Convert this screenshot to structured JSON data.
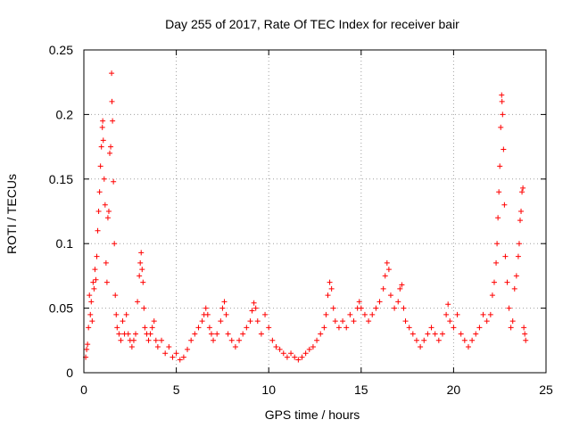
{
  "chart_data": {
    "type": "scatter",
    "title": "Day 255 of 2017, Rate Of TEC Index for receiver bair",
    "xlabel": "GPS time / hours",
    "ylabel": "ROTI / TECUs",
    "xlim": [
      0,
      25
    ],
    "ylim": [
      0,
      0.25
    ],
    "xticks": [
      0,
      5,
      10,
      15,
      20,
      25
    ],
    "xtick_labels": [
      "0",
      "5",
      "10",
      "15",
      "20",
      "25"
    ],
    "yticks": [
      0,
      0.05,
      0.1,
      0.15,
      0.2,
      0.25
    ],
    "ytick_labels": [
      "0",
      "0.05",
      "0.1",
      "0.15",
      "0.2",
      "0.25"
    ],
    "grid": true,
    "marker": "+",
    "color": "#ff0000",
    "series": [
      {
        "name": "ROTI",
        "points": [
          [
            0.1,
            0.012
          ],
          [
            0.15,
            0.018
          ],
          [
            0.2,
            0.022
          ],
          [
            0.25,
            0.035
          ],
          [
            0.3,
            0.06
          ],
          [
            0.35,
            0.045
          ],
          [
            0.4,
            0.055
          ],
          [
            0.45,
            0.04
          ],
          [
            0.5,
            0.07
          ],
          [
            0.55,
            0.065
          ],
          [
            0.6,
            0.08
          ],
          [
            0.65,
            0.072
          ],
          [
            0.7,
            0.09
          ],
          [
            0.75,
            0.11
          ],
          [
            0.8,
            0.125
          ],
          [
            0.85,
            0.14
          ],
          [
            0.9,
            0.16
          ],
          [
            0.95,
            0.175
          ],
          [
            1.0,
            0.19
          ],
          [
            1.02,
            0.195
          ],
          [
            1.05,
            0.18
          ],
          [
            1.1,
            0.15
          ],
          [
            1.15,
            0.13
          ],
          [
            1.2,
            0.085
          ],
          [
            1.25,
            0.07
          ],
          [
            1.3,
            0.12
          ],
          [
            1.35,
            0.125
          ],
          [
            1.4,
            0.17
          ],
          [
            1.45,
            0.175
          ],
          [
            1.5,
            0.232
          ],
          [
            1.52,
            0.21
          ],
          [
            1.55,
            0.195
          ],
          [
            1.6,
            0.148
          ],
          [
            1.65,
            0.1
          ],
          [
            1.7,
            0.06
          ],
          [
            1.75,
            0.045
          ],
          [
            1.8,
            0.035
          ],
          [
            1.9,
            0.03
          ],
          [
            2.0,
            0.025
          ],
          [
            2.1,
            0.04
          ],
          [
            2.2,
            0.03
          ],
          [
            2.3,
            0.045
          ],
          [
            2.4,
            0.03
          ],
          [
            2.5,
            0.025
          ],
          [
            2.6,
            0.02
          ],
          [
            2.7,
            0.025
          ],
          [
            2.8,
            0.03
          ],
          [
            2.9,
            0.055
          ],
          [
            3.0,
            0.075
          ],
          [
            3.05,
            0.085
          ],
          [
            3.1,
            0.093
          ],
          [
            3.15,
            0.08
          ],
          [
            3.2,
            0.07
          ],
          [
            3.25,
            0.05
          ],
          [
            3.3,
            0.035
          ],
          [
            3.4,
            0.03
          ],
          [
            3.5,
            0.025
          ],
          [
            3.6,
            0.03
          ],
          [
            3.7,
            0.035
          ],
          [
            3.8,
            0.04
          ],
          [
            3.9,
            0.025
          ],
          [
            4.0,
            0.02
          ],
          [
            4.2,
            0.025
          ],
          [
            4.4,
            0.015
          ],
          [
            4.6,
            0.02
          ],
          [
            4.8,
            0.012
          ],
          [
            5.0,
            0.015
          ],
          [
            5.2,
            0.01
          ],
          [
            5.4,
            0.012
          ],
          [
            5.6,
            0.018
          ],
          [
            5.8,
            0.025
          ],
          [
            6.0,
            0.03
          ],
          [
            6.2,
            0.035
          ],
          [
            6.4,
            0.04
          ],
          [
            6.5,
            0.045
          ],
          [
            6.6,
            0.05
          ],
          [
            6.7,
            0.045
          ],
          [
            6.8,
            0.035
          ],
          [
            6.9,
            0.03
          ],
          [
            7.0,
            0.025
          ],
          [
            7.2,
            0.03
          ],
          [
            7.4,
            0.04
          ],
          [
            7.5,
            0.05
          ],
          [
            7.6,
            0.055
          ],
          [
            7.7,
            0.045
          ],
          [
            7.8,
            0.03
          ],
          [
            8.0,
            0.025
          ],
          [
            8.2,
            0.02
          ],
          [
            8.4,
            0.025
          ],
          [
            8.6,
            0.03
          ],
          [
            8.8,
            0.035
          ],
          [
            9.0,
            0.04
          ],
          [
            9.1,
            0.048
          ],
          [
            9.2,
            0.054
          ],
          [
            9.3,
            0.05
          ],
          [
            9.4,
            0.04
          ],
          [
            9.6,
            0.03
          ],
          [
            9.8,
            0.045
          ],
          [
            10.0,
            0.035
          ],
          [
            10.2,
            0.025
          ],
          [
            10.4,
            0.02
          ],
          [
            10.6,
            0.018
          ],
          [
            10.8,
            0.015
          ],
          [
            11.0,
            0.012
          ],
          [
            11.2,
            0.015
          ],
          [
            11.4,
            0.012
          ],
          [
            11.6,
            0.01
          ],
          [
            11.8,
            0.012
          ],
          [
            12.0,
            0.015
          ],
          [
            12.2,
            0.018
          ],
          [
            12.4,
            0.02
          ],
          [
            12.6,
            0.025
          ],
          [
            12.8,
            0.03
          ],
          [
            13.0,
            0.035
          ],
          [
            13.1,
            0.045
          ],
          [
            13.2,
            0.06
          ],
          [
            13.3,
            0.07
          ],
          [
            13.4,
            0.065
          ],
          [
            13.5,
            0.05
          ],
          [
            13.6,
            0.04
          ],
          [
            13.8,
            0.035
          ],
          [
            14.0,
            0.04
          ],
          [
            14.2,
            0.035
          ],
          [
            14.4,
            0.045
          ],
          [
            14.6,
            0.04
          ],
          [
            14.8,
            0.05
          ],
          [
            14.9,
            0.055
          ],
          [
            15.0,
            0.05
          ],
          [
            15.2,
            0.045
          ],
          [
            15.4,
            0.04
          ],
          [
            15.6,
            0.045
          ],
          [
            15.8,
            0.05
          ],
          [
            16.0,
            0.055
          ],
          [
            16.2,
            0.065
          ],
          [
            16.3,
            0.075
          ],
          [
            16.4,
            0.085
          ],
          [
            16.5,
            0.08
          ],
          [
            16.6,
            0.06
          ],
          [
            16.8,
            0.05
          ],
          [
            17.0,
            0.055
          ],
          [
            17.1,
            0.065
          ],
          [
            17.2,
            0.068
          ],
          [
            17.3,
            0.05
          ],
          [
            17.4,
            0.04
          ],
          [
            17.6,
            0.035
          ],
          [
            17.8,
            0.03
          ],
          [
            18.0,
            0.025
          ],
          [
            18.2,
            0.02
          ],
          [
            18.4,
            0.025
          ],
          [
            18.6,
            0.03
          ],
          [
            18.8,
            0.035
          ],
          [
            19.0,
            0.03
          ],
          [
            19.2,
            0.025
          ],
          [
            19.4,
            0.03
          ],
          [
            19.6,
            0.045
          ],
          [
            19.7,
            0.053
          ],
          [
            19.8,
            0.04
          ],
          [
            20.0,
            0.035
          ],
          [
            20.2,
            0.045
          ],
          [
            20.4,
            0.03
          ],
          [
            20.6,
            0.025
          ],
          [
            20.8,
            0.02
          ],
          [
            21.0,
            0.025
          ],
          [
            21.2,
            0.03
          ],
          [
            21.4,
            0.035
          ],
          [
            21.6,
            0.045
          ],
          [
            21.8,
            0.04
          ],
          [
            22.0,
            0.045
          ],
          [
            22.1,
            0.06
          ],
          [
            22.2,
            0.07
          ],
          [
            22.3,
            0.085
          ],
          [
            22.35,
            0.1
          ],
          [
            22.4,
            0.12
          ],
          [
            22.45,
            0.14
          ],
          [
            22.5,
            0.16
          ],
          [
            22.55,
            0.19
          ],
          [
            22.6,
            0.215
          ],
          [
            22.62,
            0.21
          ],
          [
            22.65,
            0.2
          ],
          [
            22.7,
            0.173
          ],
          [
            22.75,
            0.13
          ],
          [
            22.8,
            0.09
          ],
          [
            22.9,
            0.07
          ],
          [
            23.0,
            0.05
          ],
          [
            23.1,
            0.035
          ],
          [
            23.2,
            0.04
          ],
          [
            23.3,
            0.065
          ],
          [
            23.4,
            0.075
          ],
          [
            23.5,
            0.09
          ],
          [
            23.55,
            0.1
          ],
          [
            23.6,
            0.118
          ],
          [
            23.65,
            0.125
          ],
          [
            23.7,
            0.14
          ],
          [
            23.75,
            0.143
          ],
          [
            23.8,
            0.035
          ],
          [
            23.85,
            0.03
          ],
          [
            23.9,
            0.025
          ]
        ]
      }
    ]
  }
}
